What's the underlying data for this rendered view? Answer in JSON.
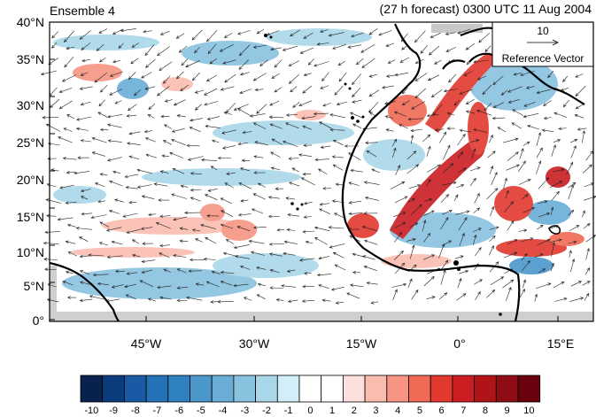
{
  "title_left": "Ensemble 4",
  "title_right": "(27 h forecast) 0300 UTC 11 Aug 2004",
  "map": {
    "lon_range": [
      -57,
      19
    ],
    "lat_range": [
      0,
      40
    ],
    "y_ticks": [
      "40°N",
      "35°N",
      "30°N",
      "25°N",
      "20°N",
      "15°N",
      "10°N",
      "5°N",
      "0°"
    ],
    "x_ticks": [
      "45°W",
      "30°W",
      "15°W",
      "0°",
      "15°E"
    ]
  },
  "reference_vector": {
    "value": "10",
    "label": "Reference Vector"
  },
  "colorbar": {
    "labels": [
      "-10",
      "-9",
      "-8",
      "-7",
      "-6",
      "-5",
      "-4",
      "-3",
      "-2",
      "-1",
      "0",
      "1",
      "2",
      "3",
      "4",
      "5",
      "6",
      "7",
      "8",
      "9",
      "10"
    ],
    "colors": [
      "#08224d",
      "#0b3b7a",
      "#1a5aa5",
      "#2471b5",
      "#2f81c0",
      "#4b97cc",
      "#6aadd6",
      "#88c2df",
      "#a9d6e8",
      "#d2eef8",
      "#ffffff",
      "#ffffff",
      "#fde0de",
      "#fbbcb0",
      "#f79582",
      "#f06a55",
      "#e2392f",
      "#cb1d22",
      "#b01419",
      "#8f0c14",
      "#6b000e"
    ]
  }
}
